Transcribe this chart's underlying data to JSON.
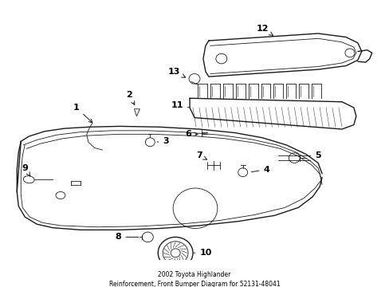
{
  "title": "2002 Toyota Highlander\nReinforcement, Front Bumper Diagram for 52131-48041",
  "background_color": "#ffffff",
  "line_color": "#1a1a1a",
  "text_color": "#000000",
  "fig_width": 4.89,
  "fig_height": 3.6,
  "dpi": 100
}
